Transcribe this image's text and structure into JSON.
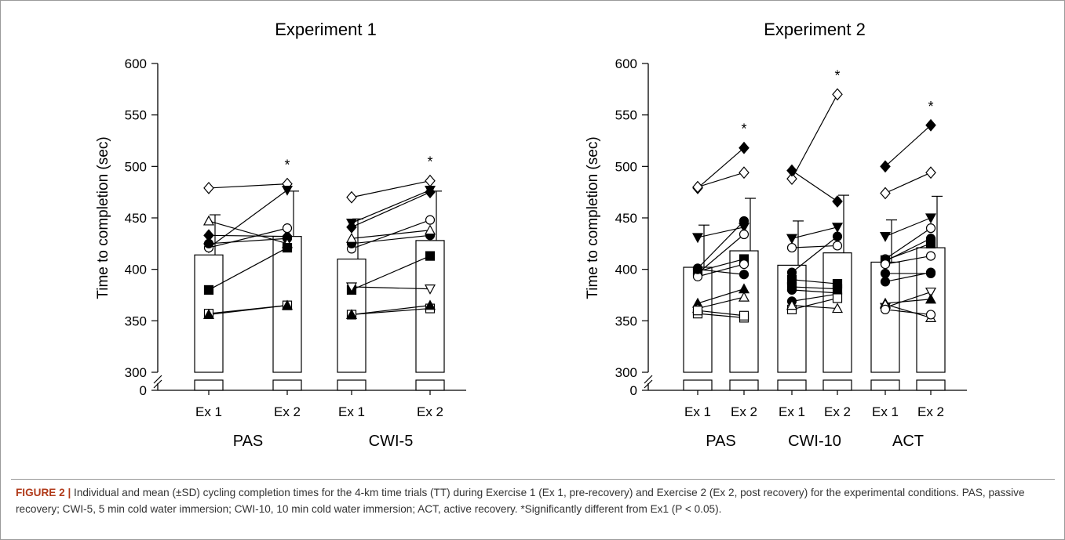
{
  "chart_data": [
    {
      "type": "bar",
      "title": "Experiment 1",
      "ylabel": "Time to completion (sec)",
      "xlabel": "",
      "ylim": [
        300,
        600
      ],
      "y_break_label": "0",
      "yticks": [
        300,
        350,
        400,
        450,
        500,
        550,
        600
      ],
      "categories": [
        "Ex 1",
        "Ex 2",
        "Ex 1",
        "Ex 2"
      ],
      "groups": [
        {
          "label": "PAS",
          "mean": [
            414,
            432
          ],
          "sd": [
            39,
            44
          ],
          "significant": [
            "",
            "*"
          ],
          "individual": [
            {
              "marker": "diamond-open",
              "values": [
                479,
                483
              ]
            },
            {
              "marker": "tri-down-filled",
              "values": [
                421,
                477
              ]
            },
            {
              "marker": "diamond-filled",
              "values": [
                433,
                432
              ]
            },
            {
              "marker": "circle-open",
              "values": [
                421,
                440
              ]
            },
            {
              "marker": "circle-filled",
              "values": [
                425,
                430
              ]
            },
            {
              "marker": "tri-up-open",
              "values": [
                447,
                425
              ]
            },
            {
              "marker": "square-filled",
              "values": [
                380,
                421
              ]
            },
            {
              "marker": "square-open",
              "values": [
                357,
                365
              ]
            },
            {
              "marker": "tri-up-filled",
              "values": [
                356,
                365
              ]
            }
          ]
        },
        {
          "label": "CWI-5",
          "mean": [
            410,
            428
          ],
          "sd": [
            39,
            48
          ],
          "significant": [
            "",
            "*"
          ],
          "individual": [
            {
              "marker": "diamond-open",
              "values": [
                470,
                486
              ]
            },
            {
              "marker": "tri-down-filled",
              "values": [
                445,
                477
              ]
            },
            {
              "marker": "diamond-filled",
              "values": [
                441,
                475
              ]
            },
            {
              "marker": "circle-open",
              "values": [
                420,
                448
              ]
            },
            {
              "marker": "circle-filled",
              "values": [
                425,
                433
              ]
            },
            {
              "marker": "tri-up-open",
              "values": [
                430,
                438
              ]
            },
            {
              "marker": "square-filled",
              "values": [
                380,
                413
              ]
            },
            {
              "marker": "tri-down-open",
              "values": [
                383,
                381
              ]
            },
            {
              "marker": "square-open",
              "values": [
                356,
                362
              ]
            },
            {
              "marker": "tri-up-filled",
              "values": [
                356,
                365
              ]
            }
          ]
        }
      ]
    },
    {
      "type": "bar",
      "title": "Experiment 2",
      "ylabel": "Time to completion (sec)",
      "xlabel": "",
      "ylim": [
        300,
        600
      ],
      "y_break_label": "0",
      "yticks": [
        300,
        350,
        400,
        450,
        500,
        550,
        600
      ],
      "categories": [
        "Ex 1",
        "Ex 2",
        "Ex 1",
        "Ex 2",
        "Ex 1",
        "Ex 2"
      ],
      "groups": [
        {
          "label": "PAS",
          "mean": [
            402,
            418
          ],
          "sd": [
            41,
            51
          ],
          "significant": [
            "",
            "*"
          ],
          "individual": [
            {
              "marker": "diamond-filled",
              "values": [
                479,
                518
              ]
            },
            {
              "marker": "diamond-open",
              "values": [
                480,
                494
              ]
            },
            {
              "marker": "circle-filled",
              "values": [
                401,
                447
              ]
            },
            {
              "marker": "tri-down-filled",
              "values": [
                431,
                441
              ]
            },
            {
              "marker": "circle-open",
              "values": [
                396,
                434
              ]
            },
            {
              "marker": "square-filled",
              "values": [
                398,
                410
              ]
            },
            {
              "marker": "circle-open",
              "values": [
                393,
                405
              ]
            },
            {
              "marker": "circle-filled",
              "values": [
                400,
                395
              ]
            },
            {
              "marker": "tri-up-filled",
              "values": [
                367,
                381
              ]
            },
            {
              "marker": "tri-up-open",
              "values": [
                362,
                373
              ]
            },
            {
              "marker": "square-open",
              "values": [
                357,
                353
              ]
            },
            {
              "marker": "square-open",
              "values": [
                360,
                355
              ]
            }
          ]
        },
        {
          "label": "CWI-10",
          "mean": [
            404,
            416
          ],
          "sd": [
            43,
            56
          ],
          "significant": [
            "",
            "*"
          ],
          "individual": [
            {
              "marker": "diamond-open",
              "values": [
                488,
                570
              ]
            },
            {
              "marker": "diamond-filled",
              "values": [
                496,
                466
              ]
            },
            {
              "marker": "tri-down-filled",
              "values": [
                430,
                441
              ]
            },
            {
              "marker": "circle-filled",
              "values": [
                397,
                432
              ]
            },
            {
              "marker": "circle-open",
              "values": [
                421,
                423
              ]
            },
            {
              "marker": "square-filled",
              "values": [
                390,
                386
              ]
            },
            {
              "marker": "circle-filled",
              "values": [
                380,
                377
              ]
            },
            {
              "marker": "square-filled",
              "values": [
                383,
                381
              ]
            },
            {
              "marker": "circle-filled",
              "values": [
                369,
                376
              ]
            },
            {
              "marker": "square-open",
              "values": [
                361,
                372
              ]
            },
            {
              "marker": "tri-up-open",
              "values": [
                365,
                362
              ]
            }
          ]
        },
        {
          "label": "ACT",
          "mean": [
            407,
            421
          ],
          "sd": [
            41,
            50
          ],
          "significant": [
            "",
            "*"
          ],
          "individual": [
            {
              "marker": "diamond-filled",
              "values": [
                500,
                540
              ]
            },
            {
              "marker": "diamond-open",
              "values": [
                474,
                494
              ]
            },
            {
              "marker": "tri-down-filled",
              "values": [
                432,
                450
              ]
            },
            {
              "marker": "circle-open",
              "values": [
                410,
                440
              ]
            },
            {
              "marker": "circle-filled",
              "values": [
                408,
                430
              ]
            },
            {
              "marker": "square-filled",
              "values": [
                409,
                425
              ]
            },
            {
              "marker": "circle-open",
              "values": [
                405,
                413
              ]
            },
            {
              "marker": "circle-filled",
              "values": [
                396,
                396
              ]
            },
            {
              "marker": "circle-filled",
              "values": [
                388,
                397
              ]
            },
            {
              "marker": "tri-down-open",
              "values": [
                363,
                378
              ]
            },
            {
              "marker": "tri-up-filled",
              "values": [
                367,
                371
              ]
            },
            {
              "marker": "tri-up-open",
              "values": [
                366,
                353
              ]
            },
            {
              "marker": "circle-open",
              "values": [
                361,
                356
              ]
            }
          ]
        }
      ]
    }
  ],
  "caption": {
    "label": "FIGURE 2 |",
    "text": " Individual and mean (±SD) cycling completion times for the 4-km time trials (TT) during Exercise 1 (Ex 1, pre-recovery) and Exercise 2 (Ex 2, post recovery) for the experimental conditions. PAS, passive recovery; CWI-5, 5 min cold water immersion; CWI-10, 10 min cold water immersion; ACT, active recovery. *Significantly different from Ex1 (P < 0.05)."
  }
}
